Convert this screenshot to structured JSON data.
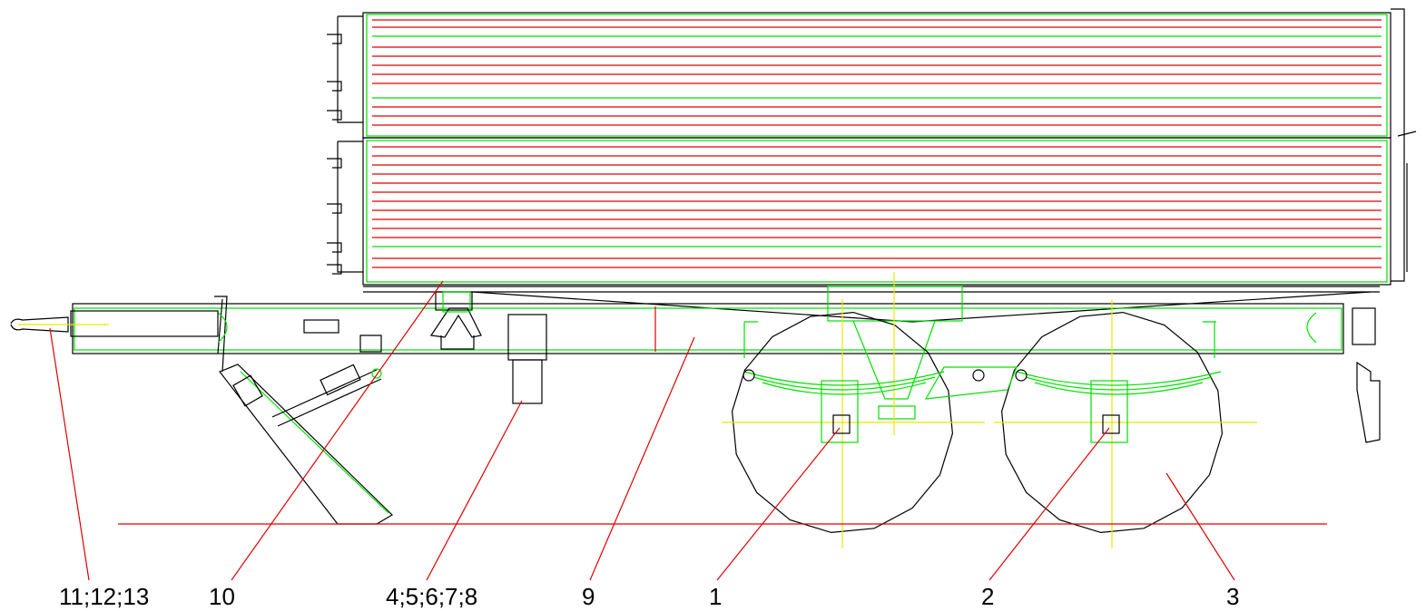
{
  "callouts": [
    {
      "label": "11;12;13"
    },
    {
      "label": "10"
    },
    {
      "label": "4;5;6;7;8"
    },
    {
      "label": "9"
    },
    {
      "label": "1"
    },
    {
      "label": "2"
    },
    {
      "label": "3"
    }
  ]
}
